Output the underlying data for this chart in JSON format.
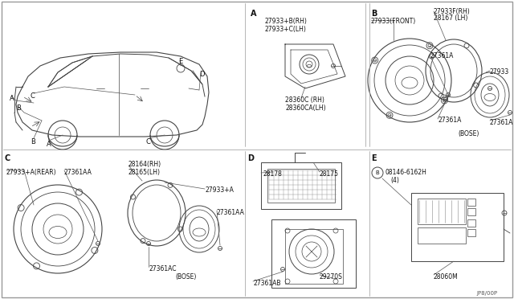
{
  "bg_color": "#ffffff",
  "line_color": "#444444",
  "text_color": "#111111",
  "fig_width": 6.4,
  "fig_height": 3.72,
  "footer": "JP8/00P",
  "section_labels": [
    "A",
    "B",
    "C",
    "D",
    "E"
  ],
  "section_A": {
    "label": "A",
    "parts": [
      "27933+B(RH)",
      "27933+C(LH)",
      "28360C (RH)",
      "28360CA(LH)"
    ]
  },
  "section_B": {
    "label": "B",
    "parts": [
      "27933(FRONT)",
      "27361A",
      "27933F(RH)",
      "28167 (LH)",
      "27933",
      "27361A",
      "(BOSE)"
    ]
  },
  "section_C": {
    "label": "C",
    "parts": [
      "27933+A(REAR)",
      "27361AA",
      "28164(RH)",
      "28165(LH)",
      "27933+A",
      "27361AA",
      "27361AC",
      "(BOSE)"
    ]
  },
  "section_D": {
    "label": "D",
    "parts": [
      "28178",
      "28175",
      "29270S",
      "27361AB"
    ]
  },
  "section_E": {
    "label": "E",
    "parts": [
      "08146-6162H",
      "(4)",
      "28060M"
    ]
  }
}
